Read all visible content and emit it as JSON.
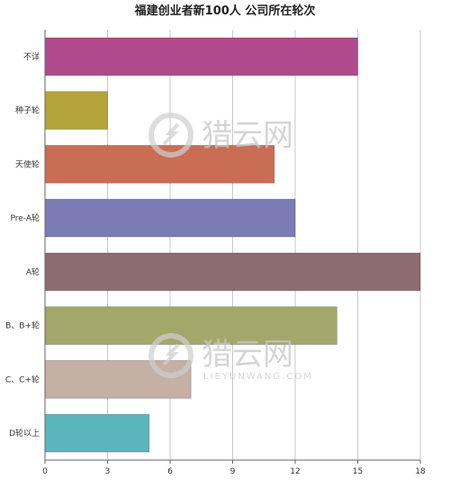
{
  "chart_data": {
    "type": "bar",
    "orientation": "horizontal",
    "title": "福建创业者新100人 公司所在轮次",
    "categories": [
      "不详",
      "种子轮",
      "天使轮",
      "Pre-A轮",
      "A轮",
      "B、B+轮",
      "C、C+轮",
      "D轮以上"
    ],
    "values": [
      15,
      3,
      11,
      12,
      18,
      14,
      7,
      5
    ],
    "colors": [
      "#b04a8d",
      "#b4a43a",
      "#c96d55",
      "#7b7bb6",
      "#8d6b70",
      "#a3a86a",
      "#c4b0a4",
      "#5bb5bd"
    ],
    "xlim": [
      0,
      18
    ],
    "xticks": [
      "0",
      "3",
      "6",
      "9",
      "12",
      "15",
      "18"
    ],
    "grid": true,
    "xlabel": "",
    "ylabel": ""
  },
  "watermark": {
    "name": "猎云网",
    "url": "LIEYUNWANG.COM"
  }
}
